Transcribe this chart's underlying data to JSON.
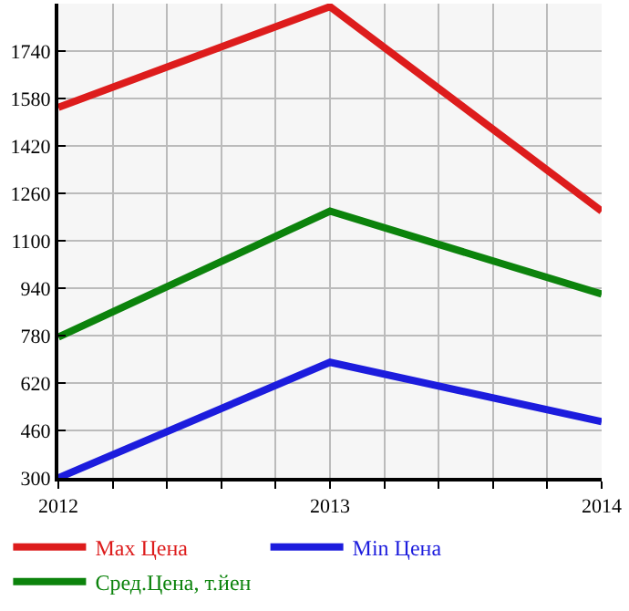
{
  "chart_data": {
    "type": "line",
    "x": [
      2012,
      2013,
      2014
    ],
    "series": [
      {
        "name": "Max Цена",
        "color": "#dd1c1c",
        "values": [
          1550,
          1890,
          1200
        ]
      },
      {
        "name": "Min Цена",
        "color": "#1c1cdd",
        "values": [
          300,
          690,
          490
        ]
      },
      {
        "name": "Сред.Цена, т.йен",
        "color": "#0c830c",
        "values": [
          775,
          1200,
          920
        ]
      }
    ],
    "xlim": [
      2012,
      2014
    ],
    "xticks": [
      2012,
      {
        "value": 2012.2,
        "label": null
      },
      {
        "value": 2012.4,
        "label": null
      },
      {
        "value": 2012.6,
        "label": null
      },
      {
        "value": 2012.8,
        "label": null
      },
      2013,
      {
        "value": 2013.2,
        "label": null
      },
      {
        "value": 2013.4,
        "label": null
      },
      {
        "value": 2013.6,
        "label": null
      },
      {
        "value": 2013.8,
        "label": null
      },
      2014
    ],
    "ylim": [
      300,
      1900
    ],
    "yticks": [
      300,
      460,
      620,
      780,
      940,
      1100,
      1260,
      1420,
      1580,
      1740
    ],
    "grid": true,
    "legend": "bottom",
    "marker": "none",
    "line_style": "solid"
  }
}
